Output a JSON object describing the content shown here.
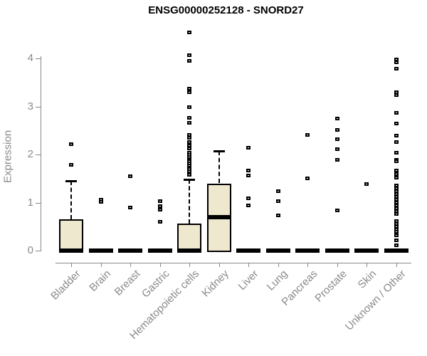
{
  "colors": {
    "box_fill": "#ede8ce",
    "box_stroke": "#000000",
    "axis_color": "#888888",
    "tick_label_color": "#8a8a8a",
    "title_color": "#000000",
    "background": "#ffffff"
  },
  "chart_data": {
    "type": "boxplot",
    "title": "ENSG00000252128 - SNORD27",
    "xlabel": "",
    "ylabel": "Expression",
    "yticks": [
      0,
      1,
      2,
      3,
      4
    ],
    "ylim": [
      -0.27,
      4.62
    ],
    "grid": false,
    "legend": "none",
    "categories": [
      "Bladder",
      "Brain",
      "Breast",
      "Gastric",
      "Hematopoietic cells",
      "Kidney",
      "Liver",
      "Lung",
      "Pancreas",
      "Prostate",
      "Skin",
      "Unknown / Other"
    ],
    "series": [
      {
        "label": "Bladder",
        "q1": 0,
        "median": 0,
        "q3": 0.65,
        "whisker_low": 0,
        "whisker_high": 1.45,
        "outliers": [
          2.22,
          1.79
        ]
      },
      {
        "label": "Brain",
        "q1": 0,
        "median": 0,
        "q3": 0,
        "whisker_low": 0,
        "whisker_high": 0,
        "outliers": [
          1.06,
          1.02
        ]
      },
      {
        "label": "Breast",
        "q1": 0,
        "median": 0,
        "q3": 0,
        "whisker_low": 0,
        "whisker_high": 0,
        "outliers": [
          1.55,
          0.9
        ]
      },
      {
        "label": "Gastric",
        "q1": 0,
        "median": 0,
        "q3": 0,
        "whisker_low": 0,
        "whisker_high": 0,
        "outliers": [
          1.03,
          0.93,
          0.86,
          0.61
        ]
      },
      {
        "label": "Hematopoietic cells",
        "q1": 0,
        "median": 0,
        "q3": 0.57,
        "whisker_low": 0,
        "whisker_high": 1.48,
        "outliers": [
          4.55,
          4.08,
          3.96,
          3.38,
          3.3,
          2.99,
          2.77,
          2.67,
          2.42,
          2.35,
          2.26,
          2.2,
          2.14,
          2.05,
          2.0,
          1.95,
          1.9,
          1.86,
          1.82,
          1.78,
          1.74,
          1.7,
          1.66,
          1.62,
          1.58
        ]
      },
      {
        "label": "Kidney",
        "q1": 0,
        "median": 0.7,
        "q3": 1.4,
        "whisker_low": 0,
        "whisker_high": 2.08,
        "outliers": []
      },
      {
        "label": "Liver",
        "q1": 0,
        "median": 0,
        "q3": 0,
        "whisker_low": 0,
        "whisker_high": 0,
        "outliers": [
          2.15,
          1.68,
          1.57,
          1.09,
          0.95
        ]
      },
      {
        "label": "Lung",
        "q1": 0,
        "median": 0,
        "q3": 0,
        "whisker_low": 0,
        "whisker_high": 0,
        "outliers": [
          1.25,
          1.04,
          0.74
        ]
      },
      {
        "label": "Pancreas",
        "q1": 0,
        "median": 0,
        "q3": 0,
        "whisker_low": 0,
        "whisker_high": 0,
        "outliers": [
          2.41,
          1.51
        ]
      },
      {
        "label": "Prostate",
        "q1": 0,
        "median": 0,
        "q3": 0,
        "whisker_low": 0,
        "whisker_high": 0,
        "outliers": [
          2.75,
          2.52,
          2.32,
          2.12,
          1.89,
          0.84
        ]
      },
      {
        "label": "Skin",
        "q1": 0,
        "median": 0,
        "q3": 0,
        "whisker_low": 0,
        "whisker_high": 0,
        "outliers": [
          1.4
        ]
      },
      {
        "label": "Unknown / Other",
        "q1": 0,
        "median": 0,
        "q3": 0,
        "whisker_low": 0,
        "whisker_high": 0,
        "outliers": [
          3.98,
          3.92,
          3.8,
          3.3,
          3.24,
          2.87,
          2.65,
          2.4,
          2.26,
          2.05,
          1.9,
          1.86,
          1.67,
          1.6,
          1.53,
          1.36,
          1.3,
          1.24,
          1.19,
          1.13,
          1.07,
          1.01,
          0.95,
          0.89,
          0.83,
          0.77,
          0.62,
          0.56,
          0.5,
          0.44,
          0.4,
          0.32,
          0.22,
          0.12
        ]
      }
    ]
  }
}
